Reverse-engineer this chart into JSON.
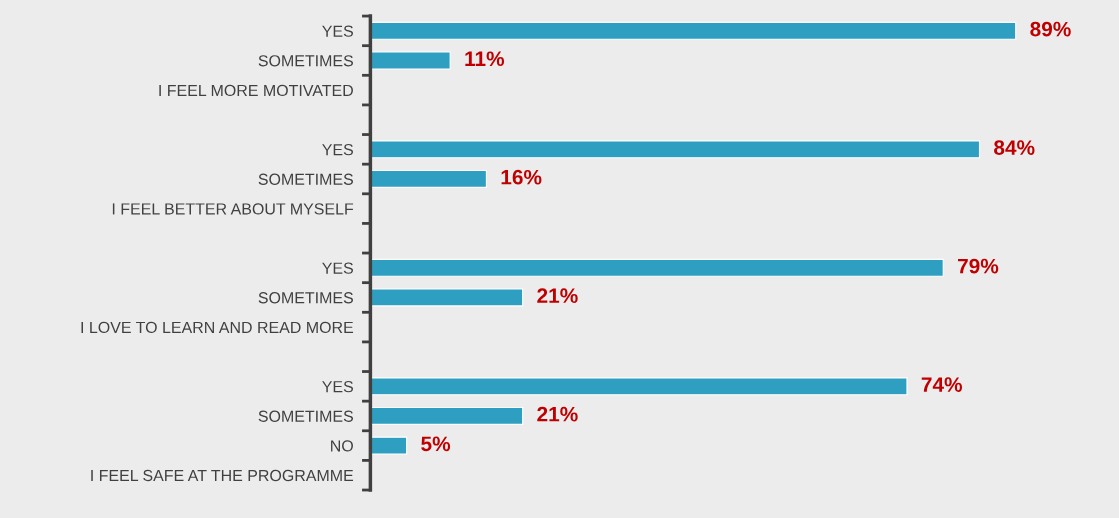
{
  "chart_data": {
    "type": "bar",
    "orientation": "horizontal",
    "categories": [
      "YES",
      "SOMETIMES",
      "I FEEL MORE MOTIVATED",
      null,
      "YES",
      "SOMETIMES",
      "I FEEL BETTER ABOUT MYSELF",
      null,
      "YES",
      "SOMETIMES",
      "I LOVE TO LEARN AND READ MORE",
      null,
      "YES",
      "SOMETIMES",
      "NO",
      "I FEEL SAFE AT THE PROGRAMME"
    ],
    "values": [
      89,
      11,
      null,
      null,
      84,
      16,
      null,
      null,
      79,
      21,
      null,
      null,
      74,
      21,
      5,
      null
    ],
    "value_labels": [
      "89%",
      "11%",
      null,
      null,
      "84%",
      "16%",
      null,
      null,
      "79%",
      "21%",
      null,
      null,
      "74%",
      "21%",
      "5%",
      null
    ],
    "color": "#2e9fc0",
    "grid": false,
    "legend": false,
    "tick_labels": "y"
  }
}
